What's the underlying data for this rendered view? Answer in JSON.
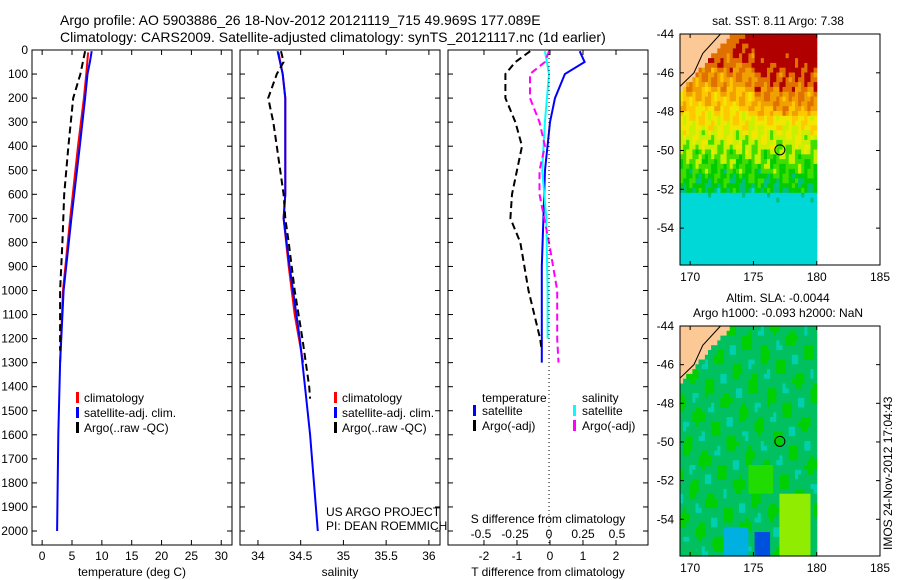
{
  "title": {
    "line1": "Argo profile: AO 5903886_26 18-Nov-2012 20121119_715 49.969S 177.089E",
    "line2": "Climatology: CARS2009. Satellite-adjusted climatology: synTS_20121117.nc (1d earlier)"
  },
  "credits": {
    "project": "US ARGO PROJECT",
    "pi": "PI: DEAN ROEMMICH",
    "watermark": "IMOS 24-Nov-2012 17:04:43"
  },
  "colors": {
    "climatology": "#ff0000",
    "satellite": "#0000ff",
    "argo": "#000000",
    "sal_satellite": "#00ffff",
    "sal_argo": "#ff00ff"
  },
  "chart_data": [
    {
      "type": "line",
      "name": "temperature-profile",
      "xlabel": "temperature (deg C)",
      "ylabel": "",
      "xlim": [
        -1.7,
        31.8
      ],
      "ylim": [
        2100,
        0
      ],
      "xticks": [
        0,
        5,
        10,
        15,
        20,
        25,
        30
      ],
      "yticks": [
        0,
        100,
        200,
        300,
        400,
        500,
        600,
        700,
        800,
        900,
        1000,
        1100,
        1200,
        1300,
        1400,
        1500,
        1600,
        1700,
        1800,
        1900,
        2000
      ],
      "legend": [
        "climatology",
        "satellite-adj. clim.",
        "Argo(..raw -QC)"
      ],
      "series": [
        {
          "name": "climatology",
          "color": "#ff0000",
          "dash": false,
          "depth": [
            10,
            100,
            200,
            400,
            700,
            1000,
            1300
          ],
          "values": [
            7.7,
            7.4,
            7.0,
            6.0,
            4.7,
            3.5,
            3.0
          ]
        },
        {
          "name": "satellite-adj. clim.",
          "color": "#0000ff",
          "dash": false,
          "depth": [
            5,
            50,
            100,
            200,
            400,
            700,
            1000,
            1300,
            1600,
            2000
          ],
          "values": [
            8.3,
            8.0,
            7.6,
            7.2,
            6.3,
            4.9,
            3.6,
            3.0,
            2.7,
            2.5
          ]
        },
        {
          "name": "Argo(..raw -QC)",
          "color": "#000000",
          "dash": true,
          "depth": [
            5,
            100,
            200,
            400,
            600,
            800,
            1000,
            1200,
            1250
          ],
          "values": [
            7.2,
            6.4,
            5.2,
            4.4,
            3.7,
            3.4,
            3.0,
            3.0,
            3.0
          ]
        }
      ]
    },
    {
      "type": "line",
      "name": "salinity-profile",
      "xlabel": "salinity",
      "xlim": [
        33.79,
        36.13
      ],
      "ylim": [
        2100,
        0
      ],
      "xticks": [
        34,
        34.5,
        35,
        35.5,
        36
      ],
      "legend": [
        "climatology",
        "satellite-adj. clim.",
        "Argo(..raw -QC)"
      ],
      "series": [
        {
          "name": "climatology",
          "color": "#ff0000",
          "dash": false,
          "depth": [
            10,
            100,
            200,
            600,
            700,
            900,
            1100,
            1300
          ],
          "values": [
            34.24,
            34.29,
            34.32,
            34.32,
            34.3,
            34.36,
            34.43,
            34.53
          ]
        },
        {
          "name": "satellite-adj. clim.",
          "color": "#0000ff",
          "dash": false,
          "depth": [
            5,
            100,
            200,
            600,
            700,
            900,
            1200,
            1400,
            1600,
            2000
          ],
          "values": [
            34.23,
            34.29,
            34.32,
            34.32,
            34.3,
            34.37,
            34.49,
            34.55,
            34.61,
            34.7
          ]
        },
        {
          "name": "Argo(..raw -QC)",
          "color": "#000000",
          "dash": true,
          "depth": [
            5,
            50,
            100,
            200,
            300,
            400,
            500,
            600,
            700,
            800,
            1000,
            1200,
            1400,
            1450
          ],
          "values": [
            34.27,
            34.3,
            34.22,
            34.12,
            34.18,
            34.22,
            34.26,
            34.3,
            34.32,
            34.36,
            34.43,
            34.52,
            34.6,
            34.61
          ]
        }
      ]
    },
    {
      "type": "line",
      "name": "difference-profile",
      "xlabel": "T difference from climatology",
      "x2label": "S difference from climatology",
      "xlim": [
        -3.09,
        2.97
      ],
      "x2lim": [
        -0.7,
        0.75
      ],
      "ylim": [
        2100,
        0
      ],
      "xticks": [
        -2,
        -1,
        0,
        1,
        2
      ],
      "x2ticks": [
        "-0.5",
        "-0.25",
        "0",
        "0.25",
        "0.5"
      ],
      "legend": {
        "temperature_header": "temperature",
        "salinity_header": "salinity",
        "t_sat": "satellite",
        "t_argo": "Argo(-adj)",
        "s_sat": "satellite",
        "s_argo": "Argo(-adj)"
      },
      "series": [
        {
          "name": "T satellite",
          "axis": "T",
          "color": "#0000ff",
          "dash": false,
          "depth": [
            5,
            50,
            100,
            200,
            300,
            500,
            700,
            900,
            1300
          ],
          "values": [
            0.9,
            1.05,
            0.45,
            0.15,
            0.0,
            -0.15,
            -0.2,
            -0.25,
            -0.25
          ]
        },
        {
          "name": "T Argo(-adj)",
          "axis": "T",
          "color": "#000000",
          "dash": true,
          "depth": [
            5,
            50,
            100,
            200,
            300,
            400,
            600,
            700,
            800,
            1000,
            1200,
            1250
          ],
          "values": [
            -0.6,
            -1.05,
            -1.35,
            -1.35,
            -1.05,
            -0.85,
            -1.15,
            -1.2,
            -0.9,
            -0.65,
            -0.3,
            -0.25
          ]
        },
        {
          "name": "S satellite",
          "axis": "S",
          "color": "#00ffff",
          "dash": false,
          "depth": [
            5,
            100,
            300,
            500,
            700,
            1000,
            1200
          ],
          "values": [
            -0.03,
            0.0,
            -0.03,
            -0.05,
            -0.02,
            -0.01,
            -0.01
          ]
        },
        {
          "name": "S Argo(-adj)",
          "axis": "S",
          "color": "#ff00ff",
          "dash": true,
          "depth": [
            5,
            50,
            100,
            200,
            300,
            400,
            500,
            600,
            800,
            1000,
            1200,
            1300
          ],
          "values": [
            0.0,
            -0.03,
            -0.14,
            -0.14,
            -0.07,
            -0.03,
            -0.07,
            -0.07,
            0.0,
            0.06,
            0.06,
            0.07
          ]
        }
      ]
    },
    {
      "type": "heatmap",
      "name": "sst-map",
      "title": "sat. SST: 8.11 Argo: 7.38",
      "xlim": [
        169.2,
        185
      ],
      "ylim": [
        -55.9,
        -44
      ],
      "xticks": [
        170,
        175,
        180,
        185
      ],
      "yticks": [
        -44,
        -46,
        -48,
        -50,
        -52,
        -54
      ],
      "argo_position": [
        177.089,
        -49.969
      ]
    },
    {
      "type": "heatmap",
      "name": "sla-map",
      "title": "Altim. SLA: -0.0044",
      "subtitle": "Argo h1000: -0.093 h2000: NaN",
      "xlim": [
        169.2,
        185
      ],
      "ylim": [
        -55.9,
        -44
      ],
      "xticks": [
        170,
        175,
        180,
        185
      ],
      "yticks": [
        -44,
        -46,
        -48,
        -50,
        -52,
        -54
      ],
      "argo_position": [
        177.089,
        -49.969
      ]
    }
  ]
}
